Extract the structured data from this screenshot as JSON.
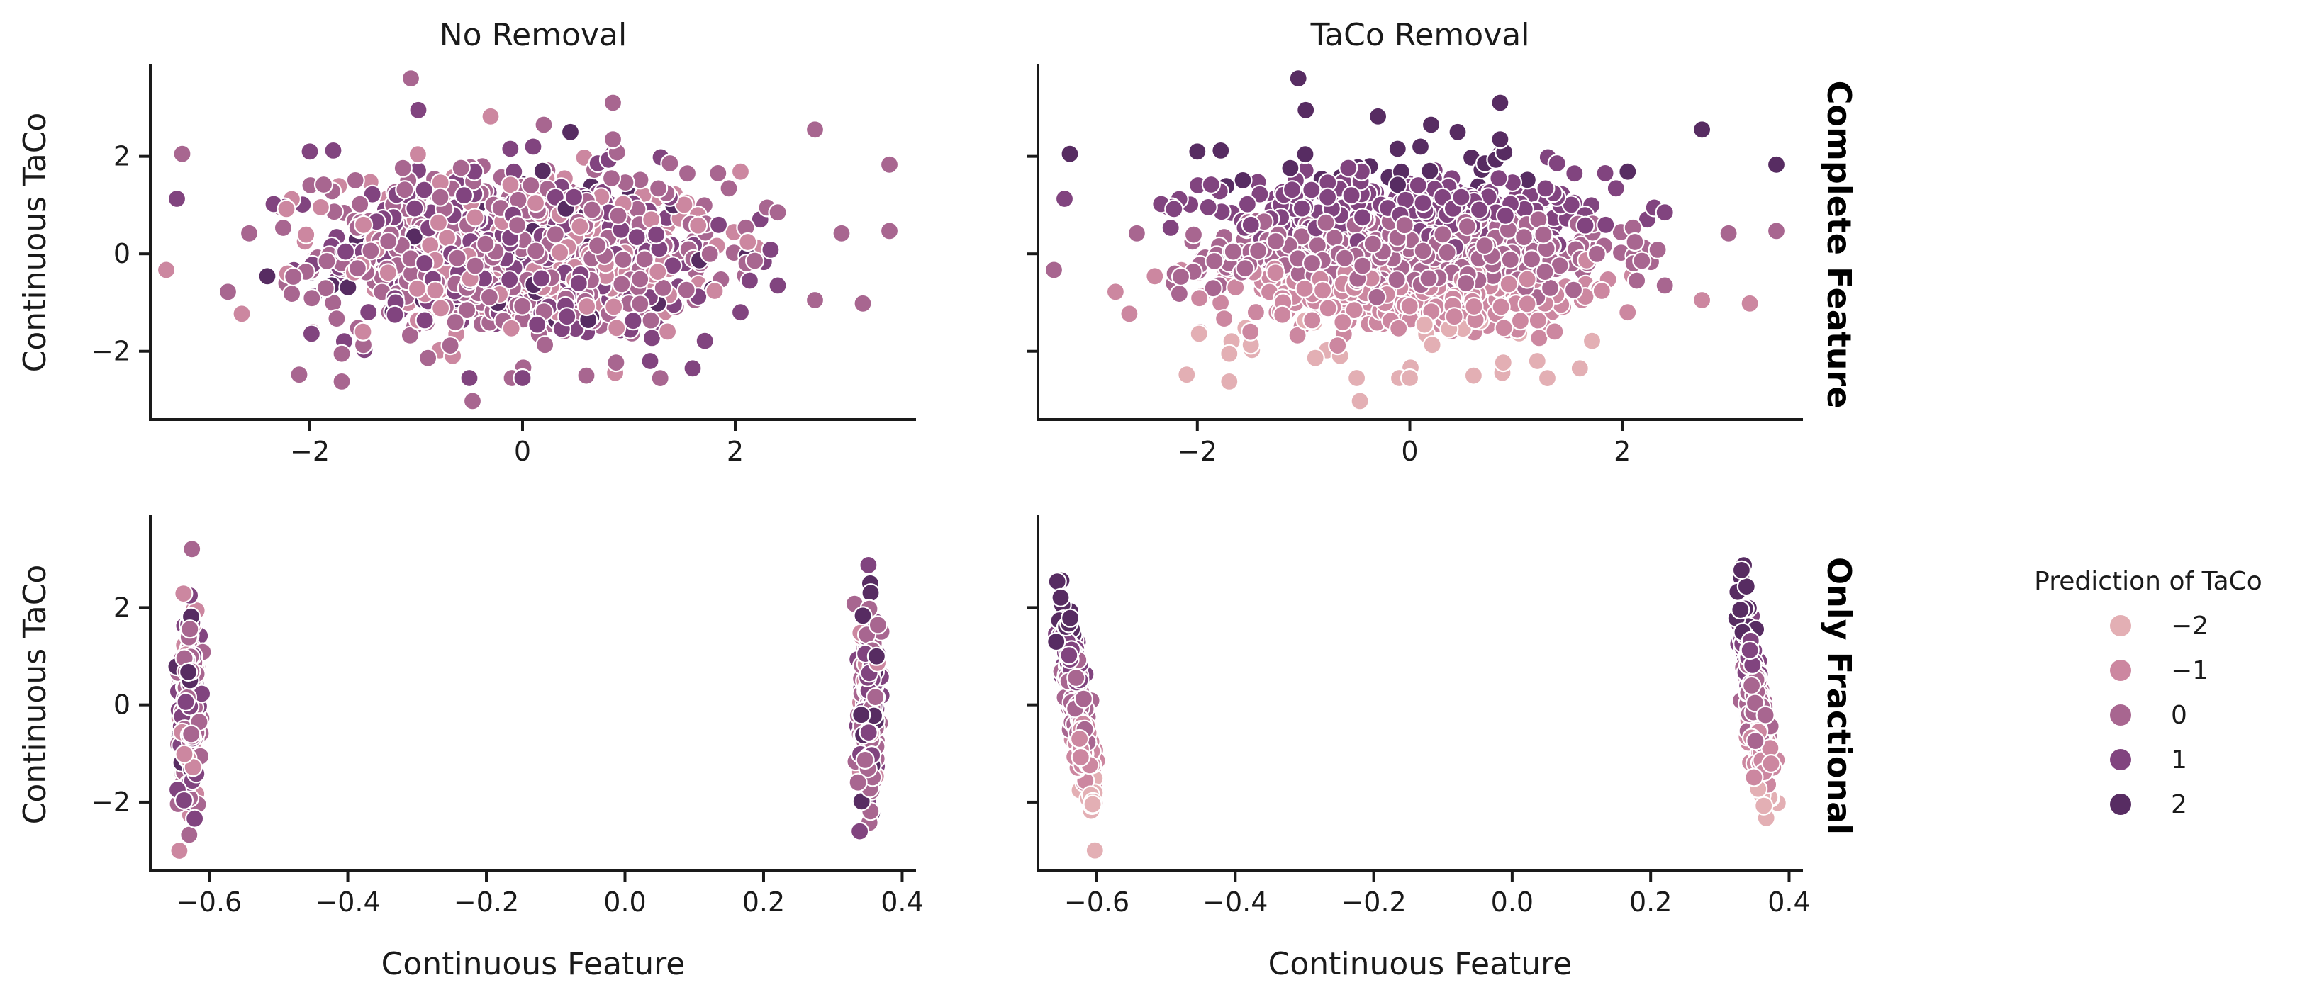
{
  "chart_data": {
    "type": "scatter",
    "layout": "facet-grid 2x2",
    "columns": [
      "No Removal",
      "TaCo Removal"
    ],
    "rows": [
      "Complete Feature",
      "Only Fractional"
    ],
    "xlabel": "Continuous Feature",
    "ylabel": "Continuous TaCo",
    "shared_y": true,
    "ylim": [
      -3.4,
      3.9
    ],
    "yticks": [
      -2,
      0,
      2
    ],
    "ytick_labels": [
      "−2",
      "0",
      "2"
    ],
    "rows_axes": [
      {
        "row": "Complete Feature",
        "xlim": [
          -3.5,
          3.7
        ],
        "xticks": [
          -2,
          0,
          2
        ],
        "xtick_labels": [
          "−2",
          "0",
          "2"
        ]
      },
      {
        "row": "Only Fractional",
        "xlim": [
          -0.685,
          0.42
        ],
        "xticks": [
          -0.6,
          -0.4,
          -0.2,
          0.0,
          0.2,
          0.4
        ],
        "xtick_labels": [
          "−0.6",
          "−0.4",
          "−0.2",
          "0.0",
          "0.2",
          "0.4"
        ]
      }
    ],
    "hue": {
      "title": "Prediction of TaCo",
      "levels": [
        -2,
        -1,
        0,
        1,
        2
      ],
      "level_labels": [
        "−2",
        "−1",
        "0",
        "1",
        "2"
      ],
      "colors": [
        "#e3afb4",
        "#cc87a0",
        "#a86690",
        "#81447f",
        "#572c62"
      ]
    },
    "series": [
      {
        "panel": "Complete Feature / No Removal",
        "points": [
          [
            -3.35,
            -0.33
          ],
          [
            -3.2,
            2.05
          ],
          [
            -3.25,
            1.13
          ],
          [
            -2.77,
            -0.78
          ],
          [
            -2.64,
            -1.23
          ],
          [
            -2.57,
            0.42
          ],
          [
            -2.4,
            -0.46
          ],
          [
            -2.34,
            1.02
          ],
          [
            -2.22,
            0.92
          ],
          [
            -2.1,
            -2.48
          ],
          [
            -2.0,
            2.1
          ],
          [
            -1.87,
            1.42
          ],
          [
            -1.78,
            2.12
          ],
          [
            -1.7,
            -2.62
          ],
          [
            -1.7,
            -2.05
          ],
          [
            -1.5,
            -1.6
          ],
          [
            -1.2,
            -1.25
          ],
          [
            -1.05,
            3.6
          ],
          [
            -0.98,
            2.95
          ],
          [
            -0.82,
            -0.75
          ],
          [
            -0.5,
            -2.55
          ],
          [
            -0.47,
            -3.02
          ],
          [
            -0.55,
            1.2
          ],
          [
            -0.3,
            2.82
          ],
          [
            -0.1,
            -2.55
          ],
          [
            0.0,
            -2.55
          ],
          [
            0.1,
            2.2
          ],
          [
            0.2,
            2.65
          ],
          [
            0.45,
            2.5
          ],
          [
            0.6,
            -2.5
          ],
          [
            0.85,
            3.1
          ],
          [
            0.85,
            2.35
          ],
          [
            1.2,
            -2.2
          ],
          [
            1.6,
            -2.35
          ],
          [
            1.55,
            1.65
          ],
          [
            2.05,
            -1.2
          ],
          [
            2.3,
            0.95
          ],
          [
            2.4,
            0.85
          ],
          [
            2.4,
            -0.65
          ],
          [
            2.75,
            2.55
          ],
          [
            2.75,
            -0.95
          ],
          [
            3.0,
            0.42
          ],
          [
            3.2,
            -1.02
          ],
          [
            3.45,
            0.47
          ],
          [
            3.45,
            1.83
          ]
        ]
      },
      {
        "panel": "Complete Feature / TaCo Removal",
        "points": [
          [
            -3.35,
            -0.33
          ],
          [
            -3.2,
            2.05
          ],
          [
            -3.25,
            1.13
          ],
          [
            -2.77,
            -0.78
          ],
          [
            -2.64,
            -1.23
          ],
          [
            -2.57,
            0.42
          ],
          [
            -2.4,
            -0.46
          ],
          [
            -2.34,
            1.02
          ],
          [
            -2.22,
            0.92
          ],
          [
            -2.1,
            -2.48
          ],
          [
            -2.0,
            2.1
          ],
          [
            -1.87,
            1.42
          ],
          [
            -1.78,
            2.12
          ],
          [
            -1.7,
            -2.62
          ],
          [
            -1.7,
            -2.05
          ],
          [
            -1.5,
            -1.6
          ],
          [
            -1.2,
            -1.25
          ],
          [
            -1.05,
            3.6
          ],
          [
            -0.98,
            2.95
          ],
          [
            -0.82,
            -0.75
          ],
          [
            -0.5,
            -2.55
          ],
          [
            -0.47,
            -3.02
          ],
          [
            -0.55,
            1.2
          ],
          [
            -0.3,
            2.82
          ],
          [
            -0.1,
            -2.55
          ],
          [
            0.0,
            -2.55
          ],
          [
            0.1,
            2.2
          ],
          [
            0.2,
            2.65
          ],
          [
            0.45,
            2.5
          ],
          [
            0.6,
            -2.5
          ],
          [
            0.85,
            3.1
          ],
          [
            0.85,
            2.35
          ],
          [
            1.2,
            -2.2
          ],
          [
            1.6,
            -2.35
          ],
          [
            1.55,
            1.65
          ],
          [
            2.05,
            -1.2
          ],
          [
            2.3,
            0.95
          ],
          [
            2.4,
            0.85
          ],
          [
            2.4,
            -0.65
          ],
          [
            2.75,
            2.55
          ],
          [
            2.75,
            -0.95
          ],
          [
            3.0,
            0.42
          ],
          [
            3.2,
            -1.02
          ],
          [
            3.45,
            0.47
          ],
          [
            3.45,
            1.83
          ]
        ]
      },
      {
        "panel": "Only Fractional / No Removal",
        "clusters": [
          {
            "x_center": -0.628,
            "x_spread": 0.012,
            "y_range": [
              -3.0,
              3.6
            ]
          },
          {
            "x_center": 0.352,
            "x_spread": 0.012,
            "y_range": [
              -2.6,
              3.1
            ]
          }
        ]
      },
      {
        "panel": "Only Fractional / TaCo Removal",
        "clusters": [
          {
            "x_center": -0.628,
            "x_spread": 0.012,
            "x_slope": -0.009,
            "y_range": [
              -3.0,
              3.6
            ]
          },
          {
            "x_center": 0.352,
            "x_spread": 0.012,
            "x_slope": -0.009,
            "y_range": [
              -2.6,
              3.1
            ]
          }
        ]
      }
    ],
    "legend_position": "right"
  }
}
